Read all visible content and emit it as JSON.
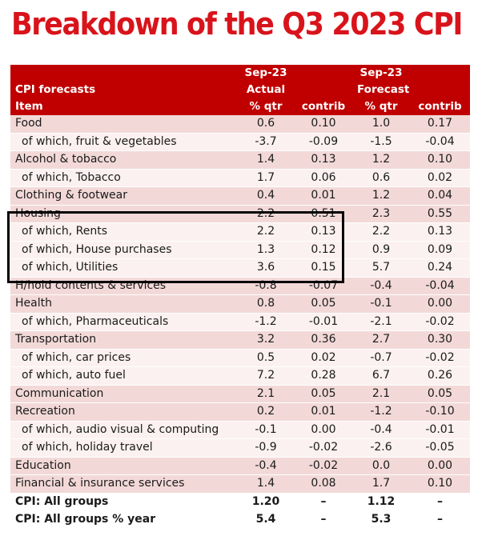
{
  "title": "Breakdown of the Q3 2023 CPI",
  "header": {
    "row1": [
      "",
      "Sep-23",
      "",
      "Sep-23",
      ""
    ],
    "row2": [
      "CPI forecasts",
      "Actual",
      "",
      "Forecast",
      ""
    ],
    "row3": [
      "Item",
      "% qtr",
      "contrib",
      "% qtr",
      "contrib"
    ]
  },
  "rows": [
    {
      "type": "main",
      "item": "Food",
      "actual_qtr": "0.6",
      "actual_contrib": "0.10",
      "forecast_qtr": "1.0",
      "forecast_contrib": "0.17"
    },
    {
      "type": "sub",
      "item": "of which, fruit & vegetables",
      "actual_qtr": "-3.7",
      "actual_contrib": "-0.09",
      "forecast_qtr": "-1.5",
      "forecast_contrib": "-0.04"
    },
    {
      "type": "main",
      "item": "Alcohol & tobacco",
      "actual_qtr": "1.4",
      "actual_contrib": "0.13",
      "forecast_qtr": "1.2",
      "forecast_contrib": "0.10"
    },
    {
      "type": "sub",
      "item": "of which, Tobacco",
      "actual_qtr": "1.7",
      "actual_contrib": "0.06",
      "forecast_qtr": "0.6",
      "forecast_contrib": "0.02"
    },
    {
      "type": "main",
      "item": "Clothing & footwear",
      "actual_qtr": "0.4",
      "actual_contrib": "0.01",
      "forecast_qtr": "1.2",
      "forecast_contrib": "0.04"
    },
    {
      "type": "main",
      "item": "Housing",
      "actual_qtr": "2.2",
      "actual_contrib": "0.51",
      "forecast_qtr": "2.3",
      "forecast_contrib": "0.55"
    },
    {
      "type": "sub",
      "item": "of which, Rents",
      "actual_qtr": "2.2",
      "actual_contrib": "0.13",
      "forecast_qtr": "2.2",
      "forecast_contrib": "0.13"
    },
    {
      "type": "sub",
      "item": "of which, House purchases",
      "actual_qtr": "1.3",
      "actual_contrib": "0.12",
      "forecast_qtr": "0.9",
      "forecast_contrib": "0.09"
    },
    {
      "type": "sub",
      "item": "of which, Utilities",
      "actual_qtr": "3.6",
      "actual_contrib": "0.15",
      "forecast_qtr": "5.7",
      "forecast_contrib": "0.24"
    },
    {
      "type": "main",
      "item": "H/hold contents & services",
      "actual_qtr": "-0.8",
      "actual_contrib": "-0.07",
      "forecast_qtr": "-0.4",
      "forecast_contrib": "-0.04"
    },
    {
      "type": "main",
      "item": "Health",
      "actual_qtr": "0.8",
      "actual_contrib": "0.05",
      "forecast_qtr": "-0.1",
      "forecast_contrib": "0.00"
    },
    {
      "type": "sub",
      "item": "of which, Pharmaceuticals",
      "actual_qtr": "-1.2",
      "actual_contrib": "-0.01",
      "forecast_qtr": "-2.1",
      "forecast_contrib": "-0.02"
    },
    {
      "type": "main",
      "item": "Transportation",
      "actual_qtr": "3.2",
      "actual_contrib": "0.36",
      "forecast_qtr": "2.7",
      "forecast_contrib": "0.30"
    },
    {
      "type": "sub",
      "item": "of which, car prices",
      "actual_qtr": "0.5",
      "actual_contrib": "0.02",
      "forecast_qtr": "-0.7",
      "forecast_contrib": "-0.02"
    },
    {
      "type": "sub",
      "item": "of which, auto fuel",
      "actual_qtr": "7.2",
      "actual_contrib": "0.28",
      "forecast_qtr": "6.7",
      "forecast_contrib": "0.26"
    },
    {
      "type": "main",
      "item": "Communication",
      "actual_qtr": "2.1",
      "actual_contrib": "0.05",
      "forecast_qtr": "2.1",
      "forecast_contrib": "0.05"
    },
    {
      "type": "main",
      "item": "Recreation",
      "actual_qtr": "0.2",
      "actual_contrib": "0.01",
      "forecast_qtr": "-1.2",
      "forecast_contrib": "-0.10"
    },
    {
      "type": "sub",
      "item": "of which, audio visual & computing",
      "actual_qtr": "-0.1",
      "actual_contrib": "0.00",
      "forecast_qtr": "-0.4",
      "forecast_contrib": "-0.01"
    },
    {
      "type": "sub",
      "item": "of which, holiday travel",
      "actual_qtr": "-0.9",
      "actual_contrib": "-0.02",
      "forecast_qtr": "-2.6",
      "forecast_contrib": "-0.05"
    },
    {
      "type": "main",
      "item": "Education",
      "actual_qtr": "-0.4",
      "actual_contrib": "-0.02",
      "forecast_qtr": "0.0",
      "forecast_contrib": "0.00"
    },
    {
      "type": "main",
      "item": "Financial & insurance services",
      "actual_qtr": "1.4",
      "actual_contrib": "0.08",
      "forecast_qtr": "1.7",
      "forecast_contrib": "0.10"
    },
    {
      "type": "total",
      "item": "CPI: All groups",
      "actual_qtr": "1.20",
      "actual_contrib": "–",
      "forecast_qtr": "1.12",
      "forecast_contrib": "–"
    },
    {
      "type": "total",
      "item": "CPI: All groups % year",
      "actual_qtr": "5.4",
      "actual_contrib": "–",
      "forecast_qtr": "5.3",
      "forecast_contrib": "–"
    }
  ],
  "colors": {
    "title": "#d9131b",
    "header_bg": "#c00000",
    "main_row_bg": "#f2d9d7",
    "sub_row_bg": "#fbf1f0"
  }
}
